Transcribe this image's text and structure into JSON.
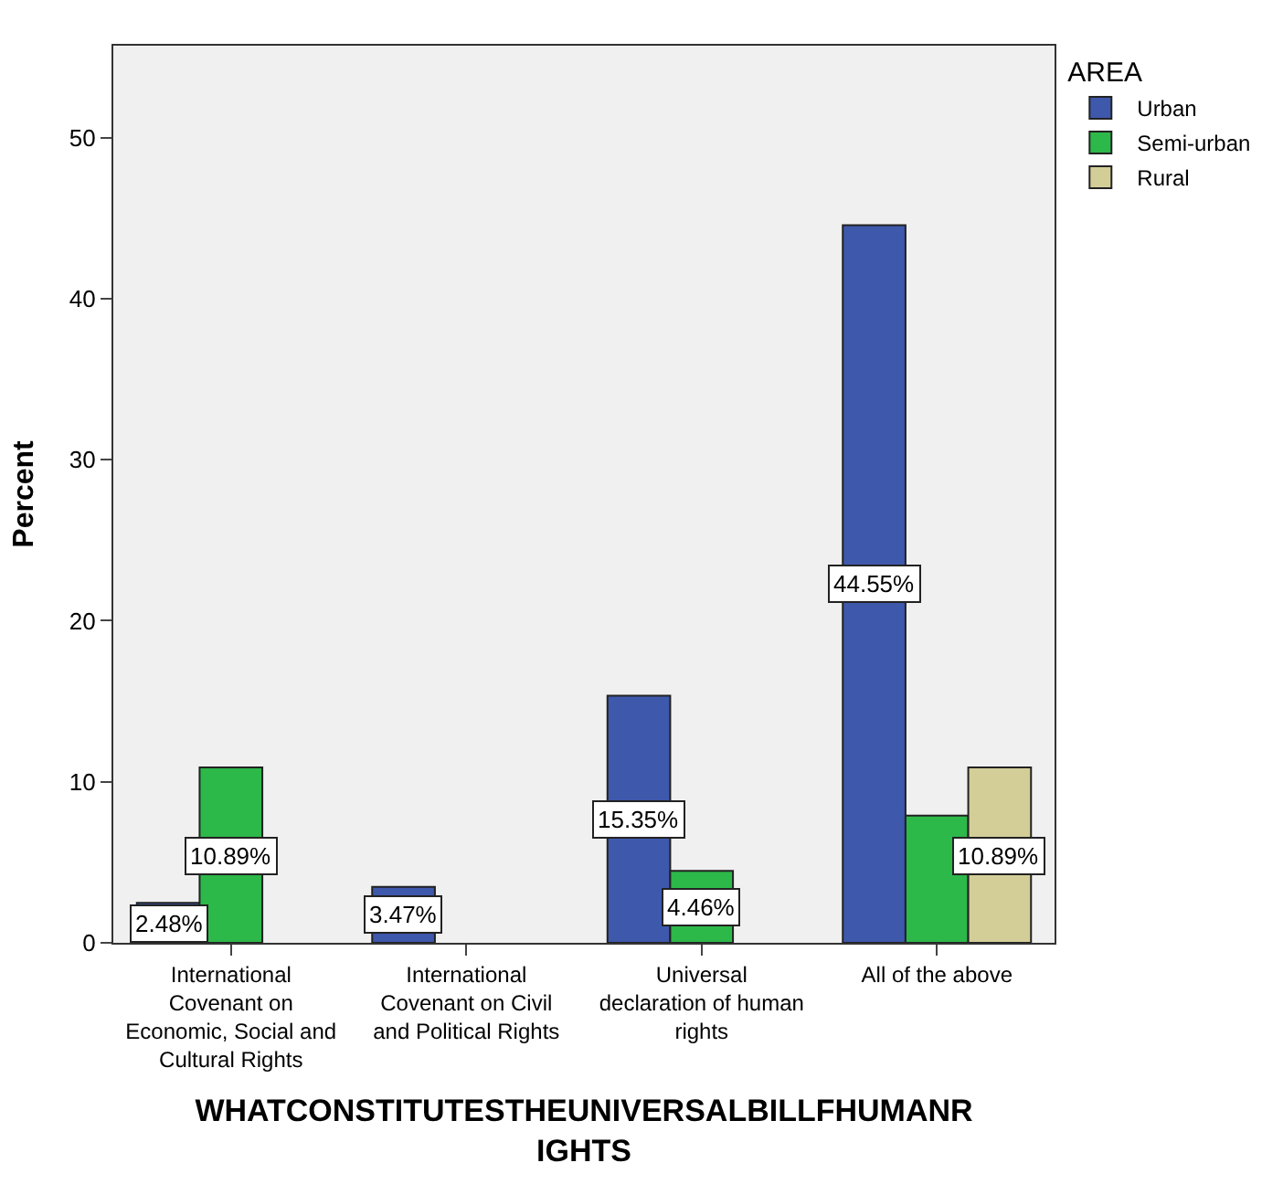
{
  "chart_data": {
    "type": "bar",
    "xlabel": "WHATCONSTITUTESTHEUNIVERSALBILLFHUMANRIGHTS",
    "ylabel": "Percent",
    "legend_title": "AREA",
    "categories": [
      "International Covenant on Economic, Social and Cultural Rights",
      "International Covenant on Civil and Political Rights",
      "Universal declaration of human rights",
      "All of the above"
    ],
    "series": [
      {
        "name": "Urban",
        "color": "#3e58ac",
        "values": [
          2.48,
          3.47,
          15.35,
          44.55
        ],
        "value_labels": [
          "2.48%",
          "3.47%",
          "15.35%",
          "44.55%"
        ]
      },
      {
        "name": "Semi-urban",
        "color": "#2db84a",
        "values": [
          10.89,
          null,
          4.46,
          7.9
        ],
        "value_labels": [
          "10.89%",
          null,
          "4.46%",
          null
        ]
      },
      {
        "name": "Rural",
        "color": "#d3ce98",
        "values": [
          null,
          null,
          null,
          10.89
        ],
        "value_labels": [
          null,
          null,
          null,
          "10.89%"
        ]
      }
    ],
    "ylim": [
      0,
      55.7
    ],
    "yticks": [
      0,
      10,
      20,
      30,
      40,
      50
    ],
    "grid": false,
    "legend": "top right"
  }
}
